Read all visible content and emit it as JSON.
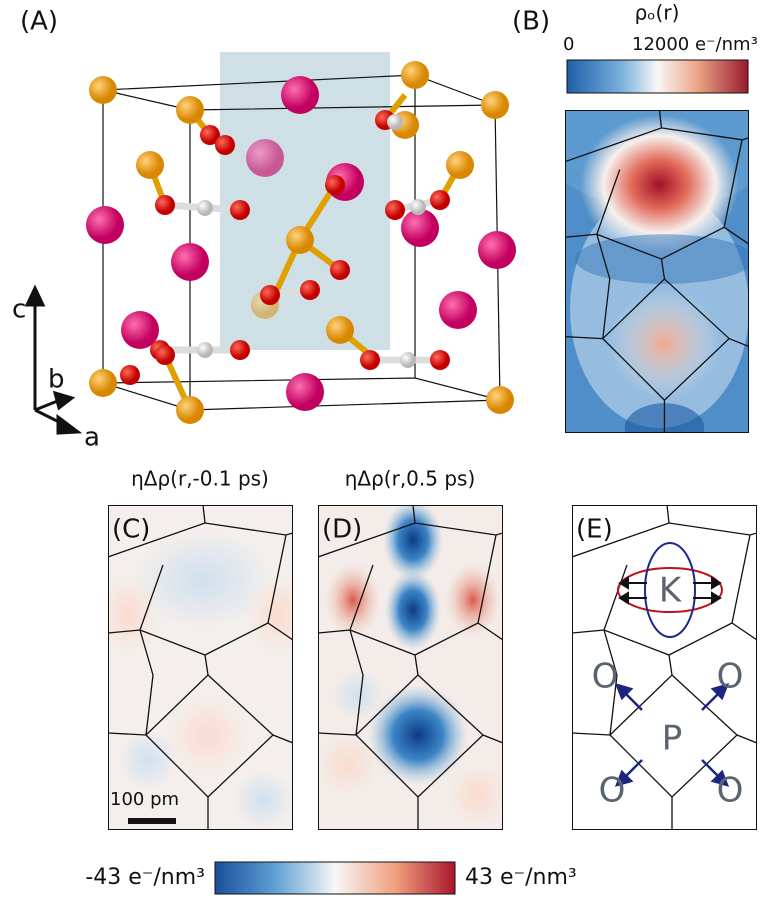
{
  "panels": {
    "a": {
      "label": "(A)",
      "axes": {
        "c": "c",
        "b": "b",
        "a": "a"
      }
    },
    "b": {
      "label": "(B)",
      "title": "ρₒ(r)",
      "colorbar": {
        "min_label": "0",
        "max_label": "12000 e⁻/nm³"
      }
    },
    "c": {
      "label": "(C)",
      "title": "ηΔρ(r,-0.1 ps)",
      "scale_bar": "100 pm"
    },
    "d": {
      "label": "(D)",
      "title": "ηΔρ(r,0.5 ps)"
    },
    "e": {
      "label": "(E)",
      "atoms": {
        "K": "K",
        "P": "P",
        "O": [
          "O",
          "O",
          "O",
          "O"
        ]
      }
    }
  },
  "colorbar": {
    "min_label": "-43 e⁻/nm³",
    "max_label": "43 e⁻/nm³"
  }
}
